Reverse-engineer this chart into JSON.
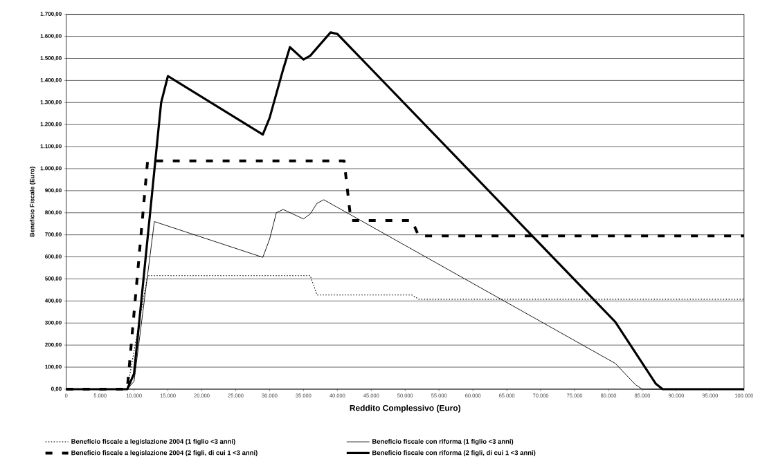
{
  "chart_data": {
    "type": "line",
    "xlabel": "Reddito Complessivo (Euro)",
    "ylabel": "Beneficio Fiscale (Euro)",
    "xlim": [
      0,
      100000
    ],
    "ylim": [
      0,
      1700
    ],
    "xticks": [
      0,
      {
        "value": 5000,
        "label": "5.000"
      },
      {
        "value": 10000,
        "label": "10.000"
      },
      {
        "value": 15000,
        "label": "15.000"
      },
      {
        "value": 20000,
        "label": "20.000"
      },
      {
        "value": 25000,
        "label": "25.000"
      },
      {
        "value": 30000,
        "label": "30.000"
      },
      {
        "value": 35000,
        "label": "35.000"
      },
      {
        "value": 40000,
        "label": "40.000"
      },
      {
        "value": 45000,
        "label": "45.000"
      },
      {
        "value": 50000,
        "label": "50.000"
      },
      {
        "value": 55000,
        "label": "55.000"
      },
      {
        "value": 60000,
        "label": "60.000"
      },
      {
        "value": 65000,
        "label": "65.000"
      },
      {
        "value": 70000,
        "label": "70.000"
      },
      {
        "value": 75000,
        "label": "75.000"
      },
      {
        "value": 80000,
        "label": "80.000"
      },
      {
        "value": 85000,
        "label": "85.000"
      },
      {
        "value": 90000,
        "label": "90.000"
      },
      {
        "value": 95000,
        "label": "95.000"
      },
      {
        "value": 100000,
        "label": "100.000"
      }
    ],
    "yticks": [
      {
        "value": 0,
        "label": "0,00"
      },
      {
        "value": 100,
        "label": "100,00"
      },
      {
        "value": 200,
        "label": "200,00"
      },
      {
        "value": 300,
        "label": "300,00"
      },
      {
        "value": 400,
        "label": "400,00"
      },
      {
        "value": 500,
        "label": "500,00"
      },
      {
        "value": 600,
        "label": "600,00"
      },
      {
        "value": 700,
        "label": "700,00"
      },
      {
        "value": 800,
        "label": "800,00"
      },
      {
        "value": 900,
        "label": "900,00"
      },
      {
        "value": 1000,
        "label": "1.000,00"
      },
      {
        "value": 1100,
        "label": "1.100,00"
      },
      {
        "value": 1200,
        "label": "1.200,00"
      },
      {
        "value": 1300,
        "label": "1.300,00"
      },
      {
        "value": 1400,
        "label": "1.400,00"
      },
      {
        "value": 1500,
        "label": "1.500,00"
      },
      {
        "value": 1600,
        "label": "1.600,00"
      },
      {
        "value": 1700,
        "label": "1.700,00"
      }
    ],
    "grid": "y",
    "legend": "bottom",
    "series": [
      {
        "name": "Beneficio fiscale a legislazione 2004 (1 figlio <3 anni)",
        "color": "#000000",
        "line_style": "dotted",
        "x": [
          0,
          9000,
          12000,
          36000,
          37000,
          51000,
          52000,
          100000
        ],
        "values": [
          0,
          0,
          515,
          515,
          427,
          427,
          408,
          408
        ]
      },
      {
        "name": "Beneficio fiscale a legislazione 2004 (2 figli, di cui 1 <3 anni)",
        "color": "#000000",
        "line_style": "dashed",
        "x": [
          0,
          9000,
          12000,
          41000,
          42000,
          51000,
          52000,
          100000
        ],
        "values": [
          0,
          0,
          1035,
          1035,
          765,
          765,
          695,
          695
        ]
      },
      {
        "name": "Beneficio fiscale con riforma (1 figlio <3 anni)",
        "color": "#000000",
        "line_style": "solid",
        "x": [
          0,
          9000,
          10000,
          13000,
          29000,
          30000,
          31000,
          32000,
          35000,
          36000,
          37000,
          38000,
          81000,
          84000,
          85000,
          100000
        ],
        "values": [
          0,
          0,
          35,
          760,
          598,
          680,
          800,
          815,
          772,
          795,
          843,
          859,
          117,
          20,
          0,
          0
        ]
      },
      {
        "name": "Beneficio fiscale con riforma (2 figli, di cui 1 <3 anni)",
        "color": "#000000",
        "line_style": "solid",
        "x": [
          0,
          9000,
          10000,
          14000,
          15000,
          29000,
          30000,
          32000,
          33000,
          35000,
          36000,
          39000,
          40000,
          81000,
          87000,
          88000,
          100000
        ],
        "values": [
          0,
          0,
          70,
          1300,
          1420,
          1155,
          1230,
          1450,
          1551,
          1495,
          1512,
          1618,
          1611,
          305,
          24,
          0,
          0
        ]
      }
    ]
  }
}
